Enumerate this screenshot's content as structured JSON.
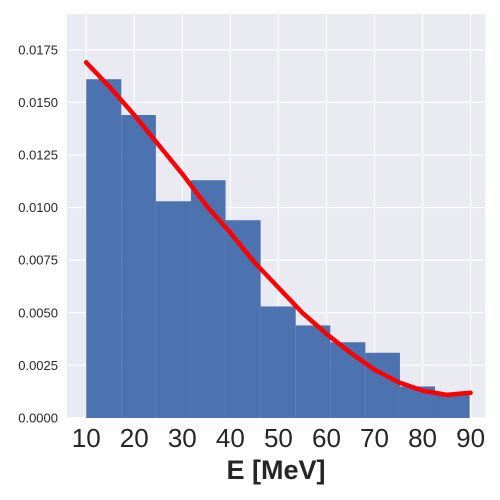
{
  "chart_data": {
    "type": "bar",
    "title": "",
    "xlabel": "E [MeV]",
    "ylabel": "",
    "xlim": [
      6,
      93
    ],
    "ylim": [
      0,
      0.0192
    ],
    "xticks": [
      "10",
      "20",
      "30",
      "40",
      "50",
      "60",
      "70",
      "80",
      "90"
    ],
    "yticks": [
      "0.0000",
      "0.0025",
      "0.0050",
      "0.0075",
      "0.0100",
      "0.0125",
      "0.0150",
      "0.0175"
    ],
    "grid": true,
    "histogram": {
      "bin_edges": [
        10,
        17.3,
        24.5,
        31.8,
        39.0,
        46.3,
        53.6,
        60.8,
        68.1,
        75.3,
        82.6,
        89.8
      ],
      "values": [
        0.0161,
        0.0144,
        0.0103,
        0.0113,
        0.0094,
        0.0053,
        0.0044,
        0.0036,
        0.0031,
        0.0015,
        0.0012
      ],
      "color": "#4c72b0"
    },
    "curve": {
      "color": "#ff0000",
      "x": [
        10,
        15,
        20,
        25,
        30,
        35,
        40,
        45,
        50,
        55,
        60,
        65,
        70,
        75,
        80,
        85,
        90
      ],
      "y": [
        0.0169,
        0.0157,
        0.0144,
        0.013,
        0.0116,
        0.0101,
        0.0088,
        0.0074,
        0.0062,
        0.005,
        0.004,
        0.0031,
        0.0023,
        0.0017,
        0.0013,
        0.0011,
        0.0012
      ]
    }
  }
}
